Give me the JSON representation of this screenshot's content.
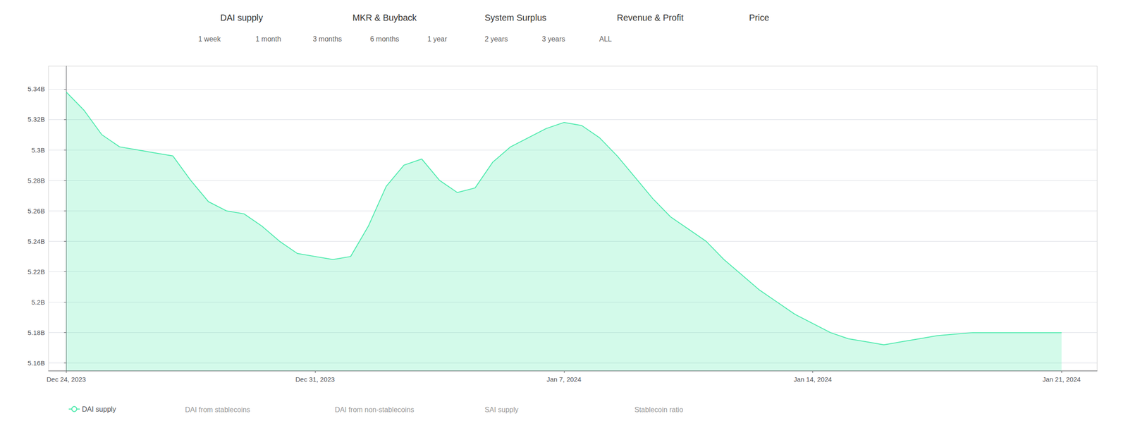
{
  "chart_data": {
    "type": "line",
    "x": [
      0,
      0.5,
      1.0,
      1.5,
      2.0,
      2.5,
      3.0,
      3.5,
      4.0,
      4.5,
      5.0,
      5.5,
      6.0,
      6.5,
      7.0,
      7.5,
      8.0,
      8.5,
      9.0,
      9.5,
      10.0,
      10.5,
      11.0,
      11.5,
      12.0,
      12.5,
      13.0,
      13.5,
      14.0,
      14.5,
      15.0,
      15.5,
      16.0,
      16.5,
      17.0,
      17.5,
      18.0,
      18.5,
      19.0,
      19.5,
      20.0,
      20.5,
      21.0,
      21.5,
      22.0,
      22.5,
      23.0,
      23.5,
      24.0,
      24.5,
      25.0,
      25.5,
      26.0,
      26.5,
      27.0,
      27.5,
      28.0
    ],
    "series": [
      {
        "name": "DAI supply",
        "color": "#4eeaad",
        "values": [
          5.338,
          5.326,
          5.31,
          5.302,
          5.3,
          5.298,
          5.296,
          5.28,
          5.266,
          5.26,
          5.258,
          5.25,
          5.24,
          5.232,
          5.23,
          5.228,
          5.23,
          5.25,
          5.276,
          5.29,
          5.294,
          5.28,
          5.272,
          5.275,
          5.292,
          5.302,
          5.308,
          5.314,
          5.318,
          5.316,
          5.308,
          5.296,
          5.282,
          5.268,
          5.256,
          5.248,
          5.24,
          5.228,
          5.218,
          5.208,
          5.2,
          5.192,
          5.186,
          5.18,
          5.176,
          5.174,
          5.172,
          5.174,
          5.176,
          5.178,
          5.179,
          5.18,
          5.18,
          5.18,
          5.18,
          5.18,
          5.18
        ]
      }
    ],
    "xlim": [
      -0.5,
      29
    ],
    "xticks": [
      {
        "value": 0,
        "label": "Dec 24, 2023"
      },
      {
        "value": 7,
        "label": "Dec 31, 2023"
      },
      {
        "value": 14,
        "label": "Jan 7, 2024"
      },
      {
        "value": 21,
        "label": "Jan 14, 2024"
      },
      {
        "value": 28,
        "label": "Jan 21, 2024"
      }
    ],
    "ylim": [
      5.155,
      5.355
    ],
    "yticks": [
      {
        "value": 5.16,
        "label": "5.16B"
      },
      {
        "value": 5.18,
        "label": "5.18B"
      },
      {
        "value": 5.2,
        "label": "5.2B"
      },
      {
        "value": 5.22,
        "label": "5.22B"
      },
      {
        "value": 5.24,
        "label": "5.24B"
      },
      {
        "value": 5.26,
        "label": "5.26B"
      },
      {
        "value": 5.28,
        "label": "5.28B"
      },
      {
        "value": 5.3,
        "label": "5.3B"
      },
      {
        "value": 5.32,
        "label": "5.32B"
      },
      {
        "value": 5.34,
        "label": "5.34B"
      }
    ],
    "grid": "y",
    "legend": "bottom",
    "annotations": [
      [
        "DAI supply",
        "MKR & Buyback",
        "System Surplus",
        "Revenue & Profit",
        "Price"
      ],
      [
        "1 week",
        "1 month",
        "3 months",
        "6 months",
        "1 year",
        "2 years",
        "3 years",
        "ALL"
      ],
      [
        "DAI from stablecoins",
        "DAI from non-stablecoins",
        "SAI supply",
        "Stablecoin ratio"
      ]
    ]
  }
}
